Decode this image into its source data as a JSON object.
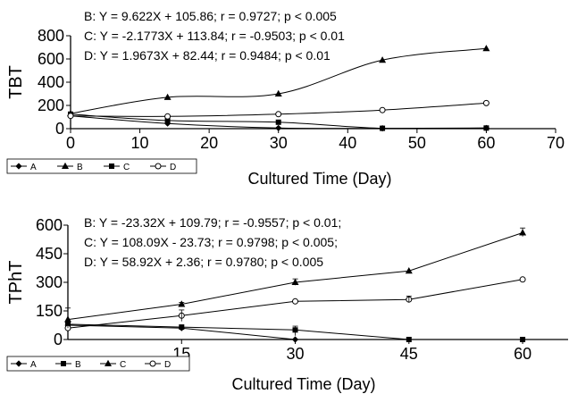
{
  "chart_data": [
    {
      "type": "line",
      "ylabel": "TBT",
      "xlabel": "Cultured Time (Day)",
      "xlim": [
        0,
        70
      ],
      "ylim": [
        0,
        800
      ],
      "xticks": [
        "0",
        "10",
        "20",
        "30",
        "40",
        "50",
        "60",
        "70"
      ],
      "yticks": [
        "0",
        "200",
        "400",
        "600",
        "800"
      ],
      "equations": [
        "B: Y = 9.622X + 105.86; r = 0.9727; p < 0.005",
        "C: Y = -2.1773X + 113.84; r = -0.9503; p < 0.01",
        "D: Y = 1.9673X + 82.44; r = 0.9484; p < 0.01"
      ],
      "legend_labels": [
        "A",
        "B",
        "C",
        "D"
      ],
      "legend_placement": "bottom-left",
      "grid": false,
      "series": [
        {
          "name": "A",
          "marker": "diamond-filled",
          "x": [
            0,
            14,
            30,
            45,
            60
          ],
          "y": [
            110,
            45,
            5,
            3,
            5
          ]
        },
        {
          "name": "B",
          "marker": "triangle-filled",
          "x": [
            0,
            14,
            30,
            45,
            60
          ],
          "y": [
            130,
            270,
            300,
            590,
            690
          ]
        },
        {
          "name": "C",
          "marker": "square-filled",
          "x": [
            0,
            14,
            30,
            45,
            60
          ],
          "y": [
            125,
            70,
            55,
            3,
            5
          ]
        },
        {
          "name": "D",
          "marker": "circle-open",
          "x": [
            0,
            14,
            30,
            45,
            60
          ],
          "y": [
            110,
            105,
            125,
            160,
            220
          ]
        }
      ]
    },
    {
      "type": "line",
      "ylabel": "TPhT",
      "xlabel": "Cultured Time (Day)",
      "xlim": [
        0,
        66
      ],
      "ylim": [
        0,
        600
      ],
      "xticks": [
        "15",
        "30",
        "45",
        "60"
      ],
      "yticks": [
        "0",
        "150",
        "300",
        "450",
        "600"
      ],
      "equations": [
        "B: Y = -23.32X + 109.79; r = -0.9557; p < 0.01;",
        "C: Y = 108.09X - 23.73; r = 0.9798; p < 0.005;",
        "D: Y = 58.92X + 2.36; r = 0.9780; p < 0.005"
      ],
      "legend_labels": [
        "A",
        "B",
        "C",
        "D"
      ],
      "legend_placement": "bottom-left",
      "grid": false,
      "series": [
        {
          "name": "A",
          "marker": "diamond-filled",
          "x": [
            0,
            15,
            30
          ],
          "y": [
            75,
            60,
            0
          ]
        },
        {
          "name": "B",
          "marker": "square-filled",
          "x": [
            0,
            15,
            30,
            45,
            60
          ],
          "y": [
            80,
            65,
            50,
            0,
            0
          ]
        },
        {
          "name": "C",
          "marker": "triangle-filled",
          "x": [
            0,
            15,
            30,
            45,
            60
          ],
          "y": [
            105,
            185,
            300,
            360,
            560
          ]
        },
        {
          "name": "D",
          "marker": "circle-open",
          "x": [
            0,
            15,
            30,
            45,
            60
          ],
          "y": [
            60,
            125,
            200,
            210,
            315
          ]
        }
      ]
    }
  ]
}
